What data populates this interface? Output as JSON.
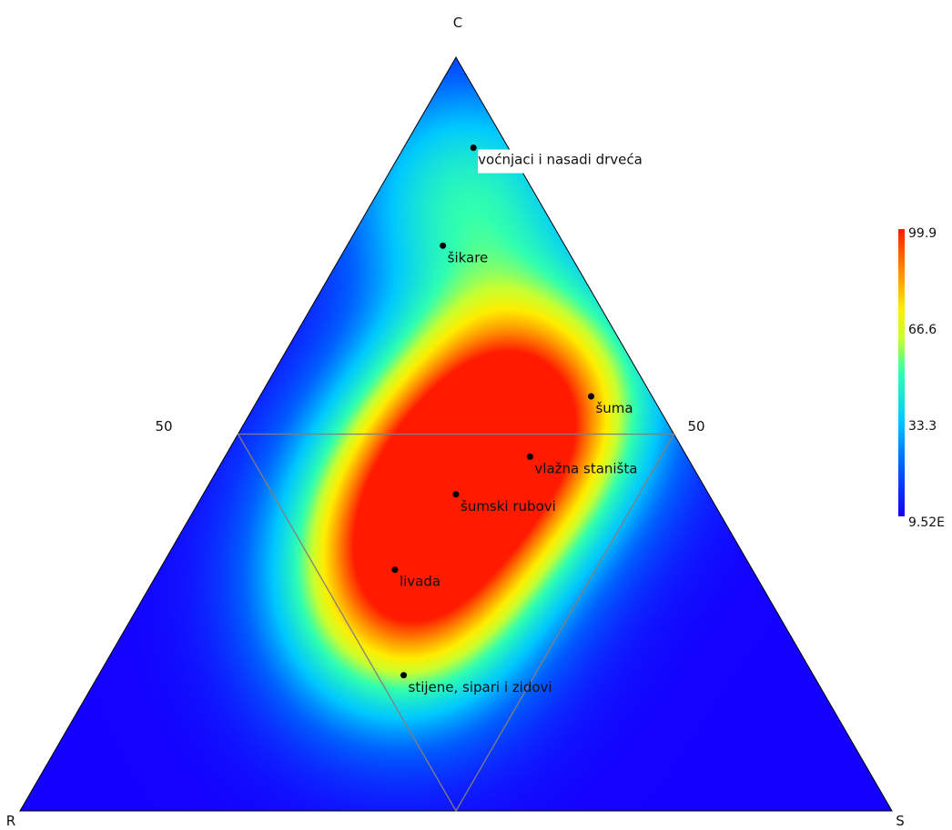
{
  "chart_data": {
    "type": "ternary-heatmap",
    "vertices": {
      "top": "C",
      "left": "R",
      "right": "S"
    },
    "edge_tick": "50",
    "colorbar": {
      "max": "99.9",
      "mid_high": "66.6",
      "mid_low": "33.3",
      "min": "9.52E",
      "max_value": 99.9,
      "min_value": 9.52
    },
    "points": [
      {
        "label": "voćnjaci i nasadi drveća",
        "c": 0.88,
        "r": 0.04,
        "s": 0.08
      },
      {
        "label": "šikare",
        "c": 0.75,
        "r": 0.14,
        "s": 0.11
      },
      {
        "label": "šuma",
        "c": 0.55,
        "r": 0.07,
        "s": 0.38
      },
      {
        "label": "vlažna staništa",
        "c": 0.47,
        "r": 0.18,
        "s": 0.35
      },
      {
        "label": "šumski rubovi",
        "c": 0.42,
        "r": 0.29,
        "s": 0.29
      },
      {
        "label": "livada",
        "c": 0.32,
        "r": 0.41,
        "s": 0.27
      },
      {
        "label": "stijene, sipari i zidovi",
        "c": 0.18,
        "r": 0.47,
        "s": 0.35
      }
    ],
    "density_peak": [
      {
        "c": 0.48,
        "r": 0.23,
        "s": 0.29,
        "weight": 1.0
      },
      {
        "c": 0.38,
        "r": 0.35,
        "s": 0.27,
        "weight": 0.95
      },
      {
        "c": 0.26,
        "r": 0.44,
        "s": 0.3,
        "weight": 0.75
      },
      {
        "c": 0.56,
        "r": 0.12,
        "s": 0.32,
        "weight": 0.8
      },
      {
        "c": 0.82,
        "r": 0.08,
        "s": 0.1,
        "weight": 0.6
      }
    ]
  }
}
